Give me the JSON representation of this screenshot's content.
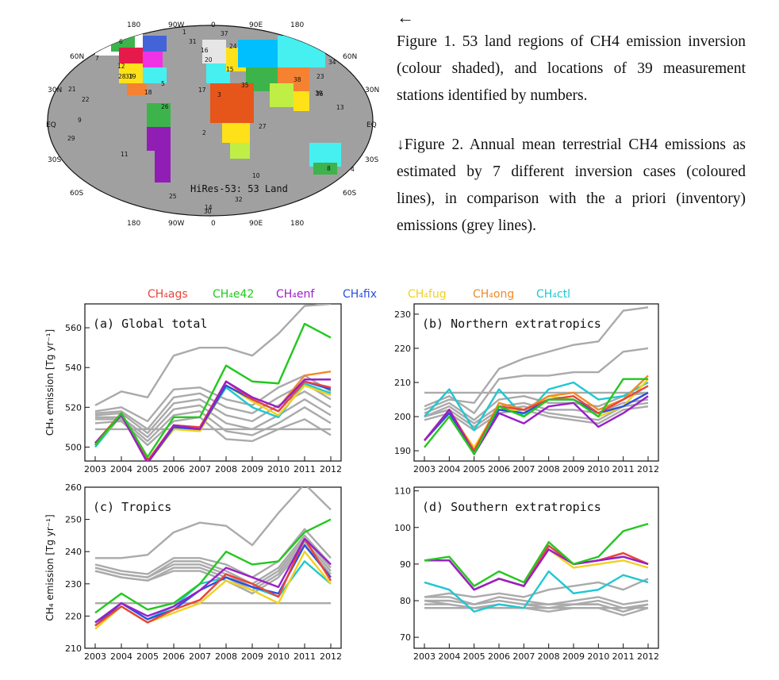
{
  "captions": {
    "arrow": "←",
    "figure1": "Figure 1. 53 land regions of CH4 emission inversion (colour shaded), and locations of 39 measurement stations identified by numbers.",
    "figure2": "↓Figure 2. Annual mean terrestrial CH4 emissions as estimated by 7 different inversion cases (coloured lines), in comparison with the a priori (inventory) emissions (grey lines)."
  },
  "map": {
    "label": "HiRes-53: 53 Land",
    "lon_labels": [
      "180",
      "90W",
      "0",
      "90E",
      "180"
    ],
    "lat_labels": [
      "60N",
      "30N",
      "EQ",
      "30S",
      "60S"
    ],
    "station_numbers": [
      "1",
      "2",
      "3",
      "4",
      "5",
      "6",
      "7",
      "8",
      "9",
      "10",
      "11",
      "12",
      "13",
      "14",
      "15",
      "16",
      "17",
      "18",
      "19",
      "20",
      "21",
      "22",
      "23",
      "24",
      "25",
      "26",
      "27",
      "28",
      "29",
      "30",
      "31",
      "32",
      "33",
      "34",
      "35",
      "36",
      "37",
      "38",
      "39"
    ]
  },
  "legend": [
    {
      "label": "CH₄ags",
      "color": "#e8453c"
    },
    {
      "label": "CH₄e42",
      "color": "#22c81e"
    },
    {
      "label": "CH₄enf",
      "color": "#9a1fc8"
    },
    {
      "label": "CH₄fix",
      "color": "#2a4fe0"
    },
    {
      "label": "CH₄fug",
      "color": "#f0d21e"
    },
    {
      "label": "CH₄ong",
      "color": "#f08a28"
    },
    {
      "label": "CH₄ctl",
      "color": "#1ec8d2"
    }
  ],
  "prior_color": "#aaaaaa",
  "chart_data": [
    {
      "type": "line",
      "title": "(a) Global total",
      "ylabel": "CH₄ emission [Tg yr⁻¹]",
      "ylim": [
        493,
        572
      ],
      "yticks": [
        500,
        520,
        540,
        560
      ],
      "x": [
        2003,
        2004,
        2005,
        2006,
        2007,
        2008,
        2009,
        2010,
        2011,
        2012
      ],
      "series": [
        {
          "name": "CH₄ags",
          "values": [
            502,
            517,
            493,
            511,
            510,
            533,
            524,
            518,
            533,
            530
          ]
        },
        {
          "name": "CH₄e42",
          "values": [
            501,
            517,
            495,
            515,
            515,
            541,
            533,
            532,
            562,
            555
          ]
        },
        {
          "name": "CH₄enf",
          "values": [
            502,
            516,
            492,
            511,
            509,
            533,
            525,
            520,
            534,
            534
          ]
        },
        {
          "name": "CH₄fix",
          "values": [
            501,
            517,
            492,
            510,
            509,
            531,
            524,
            518,
            533,
            529
          ]
        },
        {
          "name": "CH₄fug",
          "values": [
            501,
            516,
            492,
            509,
            508,
            531,
            523,
            516,
            531,
            526
          ]
        },
        {
          "name": "CH₄ong",
          "values": [
            502,
            517,
            493,
            511,
            510,
            533,
            525,
            520,
            536,
            538
          ]
        },
        {
          "name": "CH₄ctl",
          "values": [
            500,
            516,
            493,
            509,
            509,
            530,
            520,
            515,
            532,
            527
          ]
        }
      ],
      "prior": [
        [
          521,
          528,
          525,
          546,
          550,
          550,
          546,
          557,
          571,
          572
        ],
        [
          509,
          509,
          509,
          509,
          509,
          509,
          509,
          509,
          509,
          509
        ],
        [
          518,
          520,
          513,
          529,
          530,
          524,
          521,
          530,
          536,
          528
        ],
        [
          517,
          518,
          509,
          525,
          527,
          520,
          517,
          525,
          532,
          524
        ],
        [
          516,
          517,
          507,
          522,
          524,
          516,
          513,
          521,
          528,
          520
        ],
        [
          515,
          515,
          505,
          519,
          521,
          512,
          509,
          516,
          524,
          516
        ],
        [
          514,
          514,
          503,
          516,
          518,
          508,
          506,
          512,
          520,
          512
        ],
        [
          512,
          513,
          501,
          513,
          515,
          504,
          503,
          509,
          514,
          506
        ]
      ]
    },
    {
      "type": "line",
      "title": "(b) Northern extratropics",
      "ylabel": "",
      "ylim": [
        187,
        233
      ],
      "yticks": [
        190,
        200,
        210,
        220,
        230
      ],
      "x": [
        2003,
        2004,
        2005,
        2006,
        2007,
        2008,
        2009,
        2010,
        2011,
        2012
      ],
      "series": [
        {
          "name": "CH₄ags",
          "values": [
            193,
            202,
            190,
            203,
            202,
            205,
            206,
            201,
            205,
            209
          ]
        },
        {
          "name": "CH₄e42",
          "values": [
            191,
            200,
            189,
            203,
            200,
            205,
            205,
            200,
            211,
            211
          ]
        },
        {
          "name": "CH₄enf",
          "values": [
            193,
            202,
            189,
            201,
            198,
            203,
            204,
            197,
            201,
            206
          ]
        },
        {
          "name": "CH₄fix",
          "values": [
            193,
            201,
            190,
            202,
            201,
            205,
            205,
            201,
            203,
            207
          ]
        },
        {
          "name": "CH₄fug",
          "values": [
            193,
            201,
            191,
            203,
            201,
            206,
            205,
            200,
            203,
            211
          ]
        },
        {
          "name": "CH₄ong",
          "values": [
            193,
            202,
            190,
            204,
            202,
            206,
            207,
            202,
            205,
            212
          ]
        },
        {
          "name": "CH₄ctl",
          "values": [
            200,
            208,
            196,
            208,
            200,
            208,
            210,
            205,
            206,
            210
          ]
        }
      ],
      "prior": [
        [
          202,
          205,
          204,
          214,
          217,
          219,
          221,
          222,
          231,
          232
        ],
        [
          207,
          207,
          207,
          207,
          207,
          207,
          207,
          207,
          207,
          207
        ],
        [
          203,
          206,
          201,
          211,
          212,
          212,
          213,
          213,
          219,
          220
        ],
        [
          201,
          204,
          199,
          205,
          206,
          204,
          204,
          203,
          206,
          207
        ],
        [
          200,
          203,
          198,
          203,
          204,
          202,
          202,
          201,
          204,
          205
        ],
        [
          200,
          202,
          197,
          202,
          203,
          201,
          200,
          199,
          203,
          204
        ],
        [
          199,
          201,
          196,
          201,
          202,
          200,
          199,
          198,
          202,
          203
        ]
      ]
    },
    {
      "type": "line",
      "title": "(c) Tropics",
      "ylabel": "CH₄ emission [Tg yr⁻¹]",
      "ylim": [
        210,
        260
      ],
      "yticks": [
        210,
        220,
        230,
        240,
        250,
        260
      ],
      "x": [
        2003,
        2004,
        2005,
        2006,
        2007,
        2008,
        2009,
        2010,
        2011,
        2012
      ],
      "series": [
        {
          "name": "CH₄ags",
          "values": [
            217,
            223,
            218,
            222,
            225,
            233,
            230,
            226,
            244,
            231
          ]
        },
        {
          "name": "CH₄e42",
          "values": [
            221,
            227,
            222,
            224,
            230,
            240,
            236,
            237,
            246,
            250
          ]
        },
        {
          "name": "CH₄enf",
          "values": [
            218,
            224,
            220,
            223,
            228,
            235,
            232,
            229,
            244,
            236
          ]
        },
        {
          "name": "CH₄fix",
          "values": [
            217,
            224,
            219,
            222,
            228,
            232,
            229,
            227,
            242,
            232
          ]
        },
        {
          "name": "CH₄fug",
          "values": [
            216,
            223,
            218,
            221,
            224,
            231,
            228,
            224,
            240,
            230
          ]
        },
        {
          "name": "CH₄ong",
          "values": [
            217,
            223,
            218,
            222,
            225,
            233,
            230,
            226,
            244,
            231
          ]
        },
        {
          "name": "CH₄ctl",
          "values": [
            218,
            224,
            219,
            223,
            230,
            232,
            229,
            226,
            237,
            230
          ]
        }
      ],
      "prior": [
        [
          238,
          238,
          239,
          246,
          249,
          248,
          242,
          252,
          261,
          253
        ],
        [
          224,
          224,
          224,
          224,
          224,
          224,
          224,
          224,
          224,
          224
        ],
        [
          236,
          234,
          233,
          238,
          238,
          236,
          232,
          237,
          247,
          238
        ],
        [
          235,
          233,
          232,
          237,
          237,
          234,
          230,
          235,
          245,
          236
        ],
        [
          235,
          233,
          232,
          236,
          236,
          233,
          229,
          234,
          244,
          235
        ],
        [
          234,
          232,
          231,
          235,
          235,
          232,
          228,
          233,
          243,
          234
        ],
        [
          234,
          232,
          231,
          234,
          234,
          231,
          227,
          232,
          242,
          233
        ]
      ]
    },
    {
      "type": "line",
      "title": "(d) Southern extratropics",
      "ylabel": "",
      "ylim": [
        67,
        111
      ],
      "yticks": [
        70,
        80,
        90,
        100,
        110
      ],
      "x": [
        2003,
        2004,
        2005,
        2006,
        2007,
        2008,
        2009,
        2010,
        2011,
        2012
      ],
      "series": [
        {
          "name": "CH₄ags",
          "values": [
            91,
            91,
            83,
            86,
            84,
            95,
            90,
            91,
            93,
            90
          ]
        },
        {
          "name": "CH₄e42",
          "values": [
            91,
            92,
            84,
            88,
            85,
            96,
            90,
            92,
            99,
            101
          ]
        },
        {
          "name": "CH₄enf",
          "values": [
            91,
            91,
            83,
            86,
            84,
            94,
            90,
            91,
            92,
            90
          ]
        },
        {
          "name": "CH₄fix",
          "values": [
            91,
            91,
            83,
            86,
            84,
            95,
            90,
            91,
            92,
            90
          ]
        },
        {
          "name": "CH₄fug",
          "values": [
            91,
            91,
            83,
            86,
            84,
            94,
            89,
            90,
            91,
            89
          ]
        },
        {
          "name": "CH₄ong",
          "values": [
            91,
            91,
            83,
            86,
            84,
            95,
            90,
            91,
            93,
            90
          ]
        },
        {
          "name": "CH₄ctl",
          "values": [
            85,
            83,
            77,
            79,
            78,
            88,
            82,
            83,
            87,
            85
          ]
        }
      ],
      "prior": [
        [
          81,
          82,
          81,
          82,
          81,
          83,
          84,
          85,
          83,
          86
        ],
        [
          78,
          78,
          78,
          78,
          78,
          78,
          78,
          78,
          78,
          78
        ],
        [
          81,
          81,
          79,
          81,
          80,
          79,
          80,
          81,
          79,
          80
        ],
        [
          80,
          80,
          79,
          80,
          79,
          79,
          79,
          80,
          78,
          79
        ],
        [
          80,
          80,
          79,
          80,
          79,
          78,
          79,
          79,
          77,
          79
        ],
        [
          80,
          79,
          78,
          79,
          78,
          78,
          79,
          79,
          77,
          79
        ],
        [
          79,
          79,
          78,
          79,
          78,
          77,
          78,
          78,
          76,
          78
        ]
      ]
    }
  ]
}
